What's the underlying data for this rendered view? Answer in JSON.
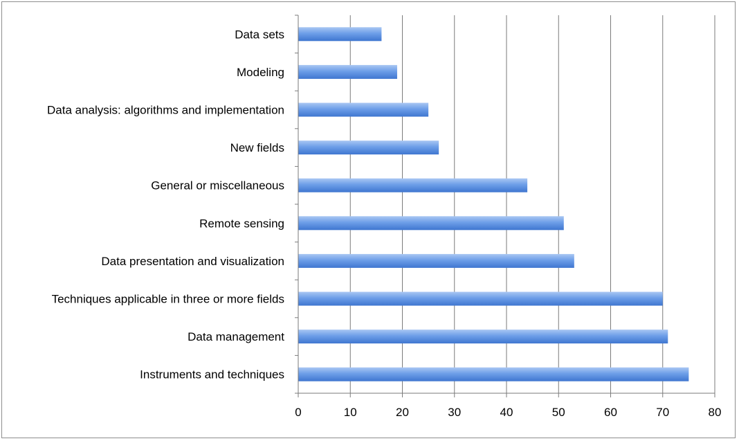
{
  "chart_data": {
    "type": "bar",
    "orientation": "horizontal",
    "categories": [
      "Data sets",
      "Modeling",
      "Data analysis: algorithms and implementation",
      "New fields",
      "General or miscellaneous",
      "Remote sensing",
      "Data presentation and visualization",
      "Techniques applicable in three or more fields",
      "Data management",
      "Instruments and techniques"
    ],
    "values": [
      16,
      19,
      25,
      27,
      44,
      51,
      53,
      70,
      71,
      75
    ],
    "xlim": [
      0,
      80
    ],
    "x_ticks": [
      "0",
      "10",
      "20",
      "30",
      "40",
      "50",
      "60",
      "70",
      "80"
    ],
    "title": "",
    "xlabel": "",
    "ylabel": "",
    "grid": "vertical",
    "legend": "none",
    "colors": {
      "bar_top": "#a9c7f3",
      "bar_mid": "#6d9ee8",
      "bar_bottom": "#3f76d0",
      "gridline": "#7a7a7a",
      "axis": "#7a7a7a",
      "frame": "#8c8c8c"
    }
  }
}
